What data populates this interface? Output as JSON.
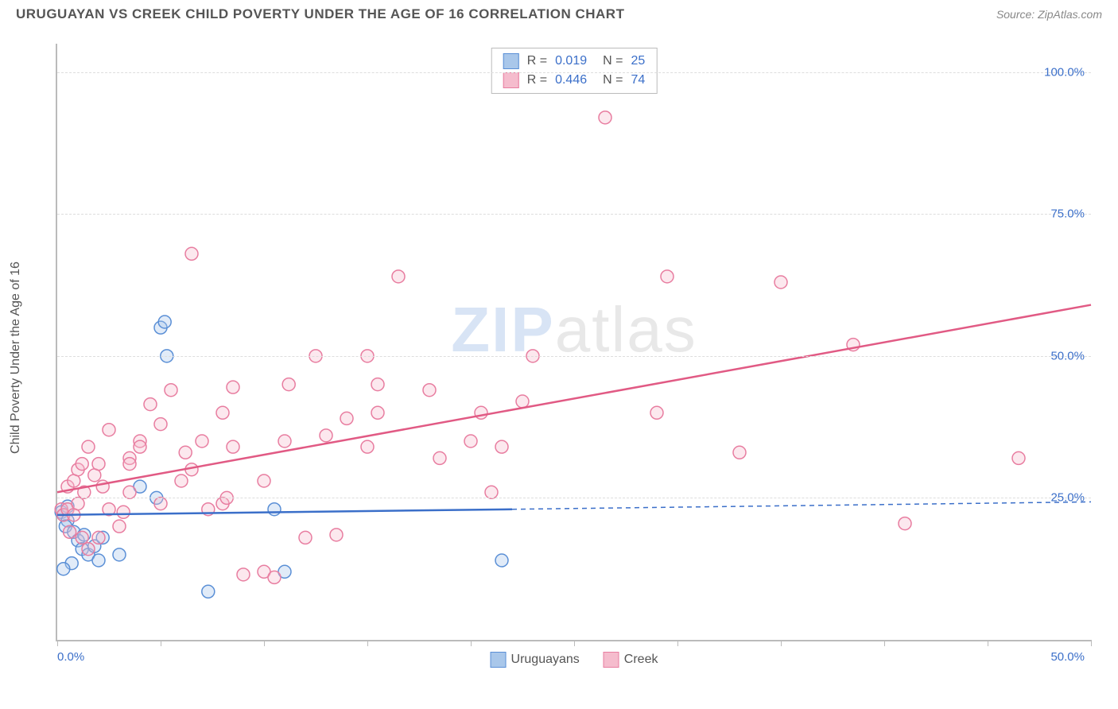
{
  "title": "URUGUAYAN VS CREEK CHILD POVERTY UNDER THE AGE OF 16 CORRELATION CHART",
  "source": "Source: ZipAtlas.com",
  "y_axis_label": "Child Poverty Under the Age of 16",
  "watermark_bold": "ZIP",
  "watermark_light": "atlas",
  "chart": {
    "type": "scatter",
    "xlim": [
      0,
      50
    ],
    "ylim": [
      0,
      105
    ],
    "x_ticks": [
      0,
      5,
      10,
      15,
      20,
      25,
      30,
      35,
      40,
      45,
      50
    ],
    "x_tick_labels": {
      "0": "0.0%",
      "50": "50.0%"
    },
    "y_gridlines": [
      25,
      50,
      75,
      100
    ],
    "y_tick_labels": {
      "25": "25.0%",
      "50": "50.0%",
      "75": "75.0%",
      "100": "100.0%"
    },
    "background_color": "#ffffff",
    "grid_color": "#dddddd",
    "axis_color": "#bbbbbb",
    "label_color": "#3b6fc9",
    "marker_radius": 8,
    "marker_fill_opacity": 0.35,
    "marker_stroke_width": 1.5,
    "series": [
      {
        "name": "Uruguayans",
        "color_stroke": "#5a8fd6",
        "color_fill": "#a9c7ea",
        "R": "0.019",
        "N": "25",
        "trendline": {
          "x1": 0,
          "y1": 22,
          "x2": 22,
          "y2": 23,
          "x2_extrapolate": 50,
          "y2_extrapolate": 24.3,
          "color": "#3b6fc9",
          "width": 2.5,
          "dash_extrapolate": "6,5"
        },
        "points": [
          [
            0.2,
            22.5
          ],
          [
            0.3,
            22
          ],
          [
            0.5,
            23.5
          ],
          [
            0.5,
            21
          ],
          [
            0.4,
            20
          ],
          [
            0.8,
            19
          ],
          [
            1.0,
            17.5
          ],
          [
            1.2,
            16
          ],
          [
            1.5,
            15
          ],
          [
            1.3,
            18.5
          ],
          [
            0.7,
            13.5
          ],
          [
            0.3,
            12.5
          ],
          [
            2.0,
            14
          ],
          [
            1.8,
            16.5
          ],
          [
            2.2,
            18
          ],
          [
            3.0,
            15
          ],
          [
            4.0,
            27
          ],
          [
            4.8,
            25
          ],
          [
            5.0,
            55
          ],
          [
            5.2,
            56
          ],
          [
            5.3,
            50
          ],
          [
            7.3,
            8.5
          ],
          [
            10.5,
            23
          ],
          [
            11.0,
            12
          ],
          [
            21.5,
            14
          ]
        ]
      },
      {
        "name": "Creek",
        "color_stroke": "#e87da0",
        "color_fill": "#f5bccd",
        "R": "0.446",
        "N": "74",
        "trendline": {
          "x1": 0,
          "y1": 26,
          "x2": 50,
          "y2": 59,
          "color": "#e15a84",
          "width": 2.5
        },
        "points": [
          [
            0.2,
            23
          ],
          [
            0.3,
            22
          ],
          [
            0.5,
            23
          ],
          [
            0.8,
            22
          ],
          [
            1.0,
            24
          ],
          [
            0.5,
            27
          ],
          [
            0.8,
            28
          ],
          [
            1.0,
            30
          ],
          [
            1.2,
            31
          ],
          [
            1.5,
            34
          ],
          [
            1.3,
            26
          ],
          [
            1.8,
            29
          ],
          [
            2.0,
            31
          ],
          [
            2.2,
            27
          ],
          [
            2.5,
            23
          ],
          [
            2.5,
            37
          ],
          [
            0.6,
            19
          ],
          [
            1.2,
            18
          ],
          [
            1.5,
            16
          ],
          [
            2.0,
            18
          ],
          [
            3.0,
            20
          ],
          [
            3.2,
            22.5
          ],
          [
            3.5,
            26
          ],
          [
            3.5,
            32
          ],
          [
            4.0,
            35
          ],
          [
            4.5,
            41.5
          ],
          [
            4.0,
            34
          ],
          [
            3.5,
            31
          ],
          [
            5.0,
            24
          ],
          [
            5.0,
            38
          ],
          [
            5.5,
            44
          ],
          [
            6.0,
            28
          ],
          [
            6.5,
            30
          ],
          [
            6.2,
            33
          ],
          [
            7.0,
            35
          ],
          [
            7.3,
            23
          ],
          [
            6.5,
            68
          ],
          [
            8.0,
            24
          ],
          [
            8.2,
            25
          ],
          [
            8.5,
            34
          ],
          [
            8.0,
            40
          ],
          [
            8.5,
            44.5
          ],
          [
            9.0,
            11.5
          ],
          [
            10.0,
            12
          ],
          [
            10.5,
            11
          ],
          [
            10.0,
            28
          ],
          [
            11.0,
            35
          ],
          [
            11.2,
            45
          ],
          [
            12.0,
            18
          ],
          [
            13.5,
            18.5
          ],
          [
            12.5,
            50
          ],
          [
            13.0,
            36
          ],
          [
            14.0,
            39
          ],
          [
            15.0,
            34
          ],
          [
            15.5,
            40
          ],
          [
            15.5,
            45
          ],
          [
            15.0,
            50
          ],
          [
            16.5,
            64
          ],
          [
            18.0,
            44
          ],
          [
            18.5,
            32
          ],
          [
            20.0,
            35
          ],
          [
            20.5,
            40
          ],
          [
            21.0,
            26
          ],
          [
            21.5,
            34
          ],
          [
            22.5,
            42
          ],
          [
            23.0,
            50
          ],
          [
            26.5,
            92
          ],
          [
            29.0,
            40
          ],
          [
            29.5,
            64
          ],
          [
            33.0,
            33
          ],
          [
            35.0,
            63
          ],
          [
            38.5,
            52
          ],
          [
            41.0,
            20.5
          ],
          [
            46.5,
            32
          ]
        ]
      }
    ]
  },
  "legend_bottom": [
    {
      "label": "Uruguayans",
      "fill": "#a9c7ea",
      "stroke": "#5a8fd6"
    },
    {
      "label": "Creek",
      "fill": "#f5bccd",
      "stroke": "#e87da0"
    }
  ]
}
